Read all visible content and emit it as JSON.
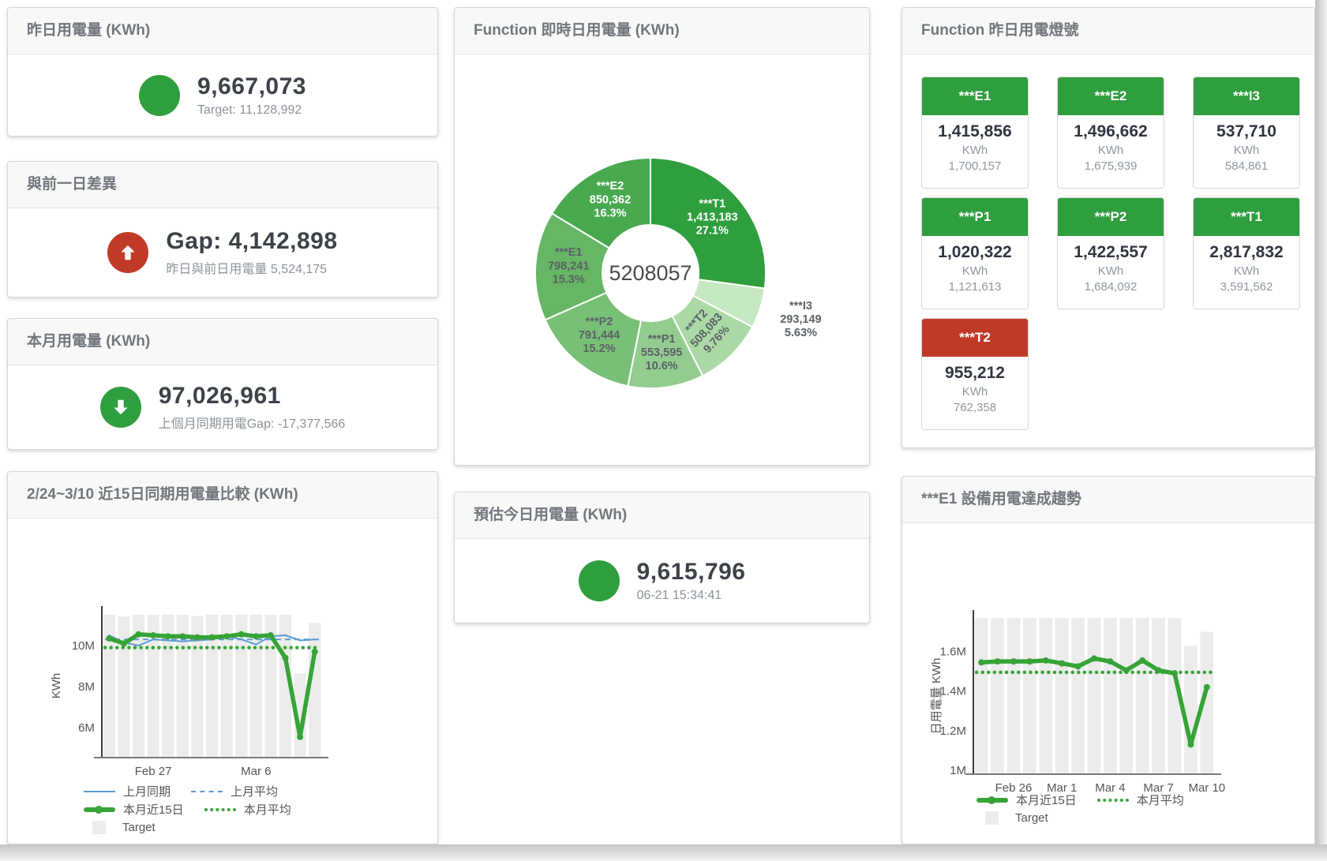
{
  "colors": {
    "green": "#2f9e3e",
    "red": "#c13a28",
    "blue": "#5b9bd5",
    "chart_green": "#36a436",
    "bar_gray": "#ececec"
  },
  "cards": {
    "yesterday": {
      "title": "昨日用電量 (KWh)",
      "value": "9,667,073",
      "sub": "Target: 11,128,992"
    },
    "gap": {
      "title": "與前一日差異",
      "value": "Gap: 4,142,898",
      "sub": "昨日與前日用電量 5,524,175"
    },
    "month": {
      "title": "本月用電量 (KWh)",
      "value": "97,026,961",
      "sub": "上個月同期用電Gap: -17,377,566"
    },
    "compare": {
      "title": "2/24~3/10 近15日同期用電量比較 (KWh)"
    },
    "realtime": {
      "title": "Function 即時日用電量 (KWh)"
    },
    "estimate": {
      "title": "預估今日用電量 (KWh)",
      "value": "9,615,796",
      "sub": "06-21 15:34:41"
    },
    "lights": {
      "title": "Function 昨日用電燈號"
    },
    "trend": {
      "title": "***E1 設備用電達成趨勢"
    }
  },
  "tiles": [
    {
      "id": "e1",
      "label": "***E1",
      "value": "1,415,856",
      "unit": "KWh",
      "target": "1,700,157",
      "status": "green"
    },
    {
      "id": "e2",
      "label": "***E2",
      "value": "1,496,662",
      "unit": "KWh",
      "target": "1,675,939",
      "status": "green"
    },
    {
      "id": "i3",
      "label": "***I3",
      "value": "537,710",
      "unit": "KWh",
      "target": "584,861",
      "status": "green"
    },
    {
      "id": "p1",
      "label": "***P1",
      "value": "1,020,322",
      "unit": "KWh",
      "target": "1,121,613",
      "status": "green"
    },
    {
      "id": "p2",
      "label": "***P2",
      "value": "1,422,557",
      "unit": "KWh",
      "target": "1,684,092",
      "status": "green"
    },
    {
      "id": "t1",
      "label": "***T1",
      "value": "2,817,832",
      "unit": "KWh",
      "target": "3,591,562",
      "status": "green"
    },
    {
      "id": "t2",
      "label": "***T2",
      "value": "955,212",
      "unit": "KWh",
      "target": "762,358",
      "status": "red"
    }
  ],
  "chart_data": [
    {
      "type": "pie",
      "title": "Function 即時日用電量 (KWh)",
      "center_total": "5208057",
      "slices": [
        {
          "id": "t1",
          "name": "***T1",
          "value": 1413183,
          "value_label": "1,413,183",
          "pct": "27.1%",
          "color": "#2f9e3e",
          "label_color": "#ffffff"
        },
        {
          "id": "i3",
          "name": "***I3",
          "value": 293149,
          "value_label": "293,149",
          "pct": "5.63%",
          "color": "#c6e8c3",
          "label_color": "#5c6166",
          "label_outside": true
        },
        {
          "id": "t2",
          "name": "***T2",
          "value": 508083,
          "value_label": "508,083",
          "pct": "9.76%",
          "color": "#abdaa6",
          "label_color": "#5c6166",
          "label_rotate": -48
        },
        {
          "id": "p1",
          "name": "***P1",
          "value": 553595,
          "value_label": "553,595",
          "pct": "10.6%",
          "color": "#92cd8f",
          "label_color": "#5c6166"
        },
        {
          "id": "p2",
          "name": "***P2",
          "value": 791444,
          "value_label": "791,444",
          "pct": "15.2%",
          "color": "#77c076",
          "label_color": "#5c6166"
        },
        {
          "id": "e1",
          "name": "***E1",
          "value": 798241,
          "value_label": "798,241",
          "pct": "15.3%",
          "color": "#66b665",
          "label_color": "#5c6166"
        },
        {
          "id": "e2",
          "name": "***E2",
          "value": 850362,
          "value_label": "850,362",
          "pct": "16.3%",
          "color": "#48a94f",
          "label_color": "#ffffff"
        }
      ]
    },
    {
      "type": "line",
      "title": "2/24~3/10 近15日同期用電量比較 (KWh)",
      "ylabel": "KWh",
      "n": 15,
      "ylim": [
        4.54,
        11.54
      ],
      "y_ticks": [
        {
          "v": 6,
          "label": "6M"
        },
        {
          "v": 8,
          "label": "8M"
        },
        {
          "v": 10,
          "label": "10M"
        }
      ],
      "x_ticks": [
        {
          "i": 3,
          "label": "Feb 27"
        },
        {
          "i": 10,
          "label": "Mar 6"
        }
      ],
      "target_bars": [
        11.5,
        11.42,
        11.5,
        11.5,
        11.5,
        11.5,
        11.44,
        11.5,
        11.5,
        11.5,
        11.5,
        11.5,
        11.5,
        8.65,
        11.1
      ],
      "series": [
        {
          "name": "上月同期",
          "style": "solid-blue",
          "values": [
            10.5,
            10.15,
            10.0,
            10.3,
            10.25,
            10.2,
            10.25,
            10.3,
            10.45,
            10.3,
            10.05,
            10.45,
            10.5,
            10.25,
            10.3
          ]
        },
        {
          "name": "上月平均",
          "style": "dash-blue",
          "flat": 10.3
        },
        {
          "name": "本月近15日",
          "style": "thick-green",
          "values": [
            10.35,
            10.1,
            10.55,
            10.5,
            10.45,
            10.45,
            10.4,
            10.4,
            10.45,
            10.55,
            10.45,
            10.5,
            9.4,
            5.55,
            9.7
          ]
        },
        {
          "name": "本月平均",
          "style": "dot-green",
          "flat": 9.9
        }
      ],
      "legend_rows": [
        [
          {
            "style": "solid-blue",
            "label": "上月同期"
          },
          {
            "style": "dash-blue",
            "label": "上月平均"
          }
        ],
        [
          {
            "style": "thick-green",
            "label": "本月近15日"
          },
          {
            "style": "dot-green",
            "label": "本月平均"
          }
        ],
        [
          {
            "style": "box-gray",
            "label": "Target"
          }
        ]
      ]
    },
    {
      "type": "line",
      "title": "***E1 設備用電達成趨勢",
      "ylabel": "日用電量 KWh",
      "n": 15,
      "ylim": [
        0.98,
        1.77
      ],
      "y_ticks": [
        {
          "v": 1,
          "label": "1M"
        },
        {
          "v": 1.2,
          "label": "1.2M"
        },
        {
          "v": 1.4,
          "label": "1.4M"
        },
        {
          "v": 1.6,
          "label": "1.6M"
        }
      ],
      "x_ticks": [
        {
          "i": 2,
          "label": "Feb 26"
        },
        {
          "i": 5,
          "label": "Mar 1"
        },
        {
          "i": 8,
          "label": "Mar 4"
        },
        {
          "i": 11,
          "label": "Mar 7"
        },
        {
          "i": 14,
          "label": "Mar 10"
        }
      ],
      "target_bars": [
        1.78,
        1.78,
        1.78,
        1.78,
        1.78,
        1.78,
        1.78,
        1.78,
        1.78,
        1.78,
        1.78,
        1.78,
        1.78,
        1.63,
        1.7
      ],
      "series": [
        {
          "name": "本月近15日",
          "style": "thick-green",
          "values": [
            1.545,
            1.55,
            1.55,
            1.55,
            1.555,
            1.54,
            1.525,
            1.565,
            1.55,
            1.505,
            1.555,
            1.505,
            1.49,
            1.13,
            1.42
          ]
        },
        {
          "name": "本月平均",
          "style": "dot-green",
          "flat": 1.495
        }
      ],
      "legend_rows": [
        [
          {
            "style": "thick-green",
            "label": "本月近15日"
          },
          {
            "style": "dot-green",
            "label": "本月平均"
          }
        ],
        [
          {
            "style": "box-gray",
            "label": "Target"
          }
        ]
      ]
    }
  ]
}
